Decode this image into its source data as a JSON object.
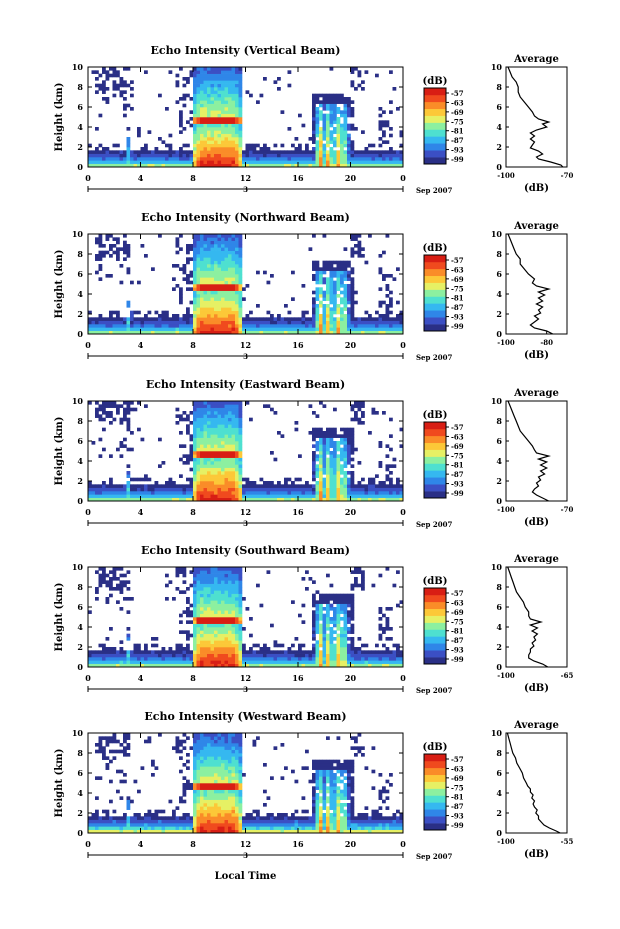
{
  "chart_data": {
    "type": "heatmap",
    "date_label": "Sep 2007",
    "xlabel": "Local Time",
    "day_label": "3",
    "x_ticks": [
      "0",
      "4",
      "8",
      "12",
      "16",
      "20",
      "0"
    ],
    "x_range_hours": [
      0,
      24
    ],
    "ylabel": "Height (km)",
    "y_ticks": [
      "0",
      "2",
      "4",
      "6",
      "8",
      "10"
    ],
    "y_range_km": [
      0,
      10
    ],
    "colorbar_unit": "(dB)",
    "colorbar_ticks": [
      "-57",
      "-63",
      "-69",
      "-75",
      "-81",
      "-87",
      "-93",
      "-99"
    ],
    "colors": [
      "#2a2f86",
      "#3b4fc4",
      "#2f86e8",
      "#35b8f0",
      "#4ee0d0",
      "#8cf0a0",
      "#e6f064",
      "#fcc838",
      "#fa8c28",
      "#f04a1e",
      "#d81e14"
    ],
    "average_title": "Average",
    "average_xlabel": "(dB)",
    "panels": [
      {
        "title": "Echo Intensity (Vertical Beam)",
        "avg_x_ticks": [
          "-100",
          "-70"
        ],
        "avg_x_range": [
          -100,
          -70
        ],
        "avg_profile": [
          [
            0.0,
            -72
          ],
          [
            0.2,
            -73
          ],
          [
            0.5,
            -78
          ],
          [
            0.8,
            -84
          ],
          [
            1.0,
            -85
          ],
          [
            1.3,
            -82
          ],
          [
            1.6,
            -84
          ],
          [
            1.9,
            -88
          ],
          [
            2.2,
            -87
          ],
          [
            2.5,
            -86
          ],
          [
            2.8,
            -88
          ],
          [
            3.1,
            -86
          ],
          [
            3.4,
            -88
          ],
          [
            3.7,
            -85
          ],
          [
            4.0,
            -80
          ],
          [
            4.3,
            -82
          ],
          [
            4.5,
            -79
          ],
          [
            4.8,
            -84
          ],
          [
            5.1,
            -86
          ],
          [
            5.5,
            -87
          ],
          [
            6.0,
            -89
          ],
          [
            6.5,
            -91
          ],
          [
            7.0,
            -93
          ],
          [
            7.5,
            -94
          ],
          [
            8.0,
            -94
          ],
          [
            8.5,
            -95
          ],
          [
            9.0,
            -97
          ],
          [
            9.5,
            -98
          ],
          [
            10.0,
            -99
          ]
        ]
      },
      {
        "title": "Echo Intensity (Northward Beam)",
        "avg_x_ticks": [
          "-100",
          "-80"
        ],
        "avg_x_range": [
          -100,
          -70
        ],
        "avg_profile": [
          [
            0.0,
            -77
          ],
          [
            0.3,
            -80
          ],
          [
            0.6,
            -86
          ],
          [
            0.9,
            -88
          ],
          [
            1.2,
            -86
          ],
          [
            1.5,
            -84
          ],
          [
            1.8,
            -86
          ],
          [
            2.1,
            -83
          ],
          [
            2.4,
            -84
          ],
          [
            2.7,
            -82
          ],
          [
            3.0,
            -85
          ],
          [
            3.3,
            -82
          ],
          [
            3.6,
            -84
          ],
          [
            3.9,
            -81
          ],
          [
            4.2,
            -84
          ],
          [
            4.5,
            -79
          ],
          [
            4.8,
            -85
          ],
          [
            5.1,
            -87
          ],
          [
            5.5,
            -86
          ],
          [
            6.0,
            -89
          ],
          [
            6.5,
            -91
          ],
          [
            7.0,
            -93
          ],
          [
            7.5,
            -93
          ],
          [
            8.0,
            -95
          ],
          [
            8.5,
            -96
          ],
          [
            9.0,
            -97
          ],
          [
            9.5,
            -98
          ],
          [
            10.0,
            -99
          ]
        ]
      },
      {
        "title": "Echo Intensity (Eastward Beam)",
        "avg_x_ticks": [
          "-100",
          "-70"
        ],
        "avg_x_range": [
          -100,
          -70
        ],
        "avg_profile": [
          [
            0.0,
            -79
          ],
          [
            0.3,
            -82
          ],
          [
            0.6,
            -85
          ],
          [
            0.9,
            -87
          ],
          [
            1.2,
            -86
          ],
          [
            1.5,
            -84
          ],
          [
            1.8,
            -85
          ],
          [
            2.1,
            -83
          ],
          [
            2.4,
            -84
          ],
          [
            2.7,
            -81
          ],
          [
            3.0,
            -83
          ],
          [
            3.3,
            -80
          ],
          [
            3.6,
            -83
          ],
          [
            3.9,
            -80
          ],
          [
            4.2,
            -84
          ],
          [
            4.5,
            -79
          ],
          [
            4.8,
            -85
          ],
          [
            5.1,
            -86
          ],
          [
            5.5,
            -87
          ],
          [
            6.0,
            -89
          ],
          [
            6.5,
            -91
          ],
          [
            7.0,
            -93
          ],
          [
            7.5,
            -94
          ],
          [
            8.0,
            -95
          ],
          [
            8.5,
            -96
          ],
          [
            9.0,
            -97
          ],
          [
            9.5,
            -98
          ],
          [
            10.0,
            -99
          ]
        ]
      },
      {
        "title": "Echo Intensity (Southward Beam)",
        "avg_x_ticks": [
          "-100",
          "-65"
        ],
        "avg_x_range": [
          -100,
          -65
        ],
        "avg_profile": [
          [
            0.0,
            -76
          ],
          [
            0.3,
            -79
          ],
          [
            0.6,
            -84
          ],
          [
            0.9,
            -87
          ],
          [
            1.2,
            -87
          ],
          [
            1.5,
            -86
          ],
          [
            1.8,
            -86
          ],
          [
            2.1,
            -84
          ],
          [
            2.4,
            -85
          ],
          [
            2.7,
            -83
          ],
          [
            3.0,
            -84
          ],
          [
            3.3,
            -82
          ],
          [
            3.6,
            -85
          ],
          [
            3.9,
            -82
          ],
          [
            4.2,
            -86
          ],
          [
            4.5,
            -80
          ],
          [
            4.8,
            -86
          ],
          [
            5.1,
            -87
          ],
          [
            5.5,
            -87
          ],
          [
            6.0,
            -89
          ],
          [
            6.5,
            -90
          ],
          [
            7.0,
            -92
          ],
          [
            7.5,
            -94
          ],
          [
            8.0,
            -95
          ],
          [
            8.5,
            -96
          ],
          [
            9.0,
            -97
          ],
          [
            9.5,
            -98
          ],
          [
            10.0,
            -99
          ]
        ]
      },
      {
        "title": "Echo Intensity (Westward Beam)",
        "avg_x_ticks": [
          "-100",
          "-55"
        ],
        "avg_x_range": [
          -100,
          -55
        ],
        "avg_profile": [
          [
            0.0,
            -60
          ],
          [
            0.2,
            -63
          ],
          [
            0.5,
            -68
          ],
          [
            0.8,
            -72
          ],
          [
            1.1,
            -74
          ],
          [
            1.4,
            -76
          ],
          [
            1.7,
            -76
          ],
          [
            2.0,
            -78
          ],
          [
            2.3,
            -77
          ],
          [
            2.6,
            -79
          ],
          [
            2.9,
            -80
          ],
          [
            3.2,
            -79
          ],
          [
            3.5,
            -81
          ],
          [
            3.8,
            -80
          ],
          [
            4.1,
            -82
          ],
          [
            4.4,
            -82
          ],
          [
            4.7,
            -84
          ],
          [
            5.0,
            -85
          ],
          [
            5.5,
            -87
          ],
          [
            6.0,
            -88
          ],
          [
            6.5,
            -90
          ],
          [
            7.0,
            -92
          ],
          [
            7.5,
            -93
          ],
          [
            8.0,
            -95
          ],
          [
            8.5,
            -96
          ],
          [
            9.0,
            -97
          ],
          [
            9.5,
            -98
          ],
          [
            10.0,
            -99
          ]
        ]
      }
    ]
  }
}
